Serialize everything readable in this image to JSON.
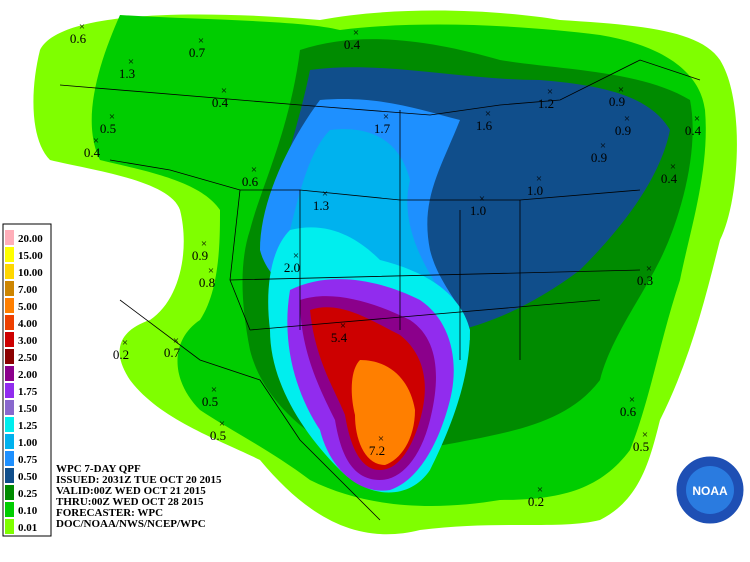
{
  "legend": {
    "items": [
      {
        "label": "20.00",
        "color": "#ffaeb9"
      },
      {
        "label": "15.00",
        "color": "#ffff00"
      },
      {
        "label": "10.00",
        "color": "#ffd700"
      },
      {
        "label": "7.00",
        "color": "#cd8500"
      },
      {
        "label": "5.00",
        "color": "#ff7f00"
      },
      {
        "label": "4.00",
        "color": "#ee4000"
      },
      {
        "label": "3.00",
        "color": "#cd0000"
      },
      {
        "label": "2.50",
        "color": "#8b0000"
      },
      {
        "label": "2.00",
        "color": "#8b008b"
      },
      {
        "label": "1.75",
        "color": "#912cee"
      },
      {
        "label": "1.50",
        "color": "#8968cd"
      },
      {
        "label": "1.25",
        "color": "#00eeee"
      },
      {
        "label": "1.00",
        "color": "#00b2ee"
      },
      {
        "label": "0.75",
        "color": "#1e90ff"
      },
      {
        "label": "0.50",
        "color": "#104e8b"
      },
      {
        "label": "0.25",
        "color": "#008b00"
      },
      {
        "label": "0.10",
        "color": "#00cd00"
      },
      {
        "label": "0.01",
        "color": "#7fff00"
      }
    ]
  },
  "info": [
    "WPC 7-DAY QPF",
    "ISSUED: 2031Z TUE OCT 20 2015",
    "VALID:00Z WED OCT 21 2015",
    "THRU:00Z WED OCT 28 2015",
    "FORECASTER: WPC",
    "DOC/NOAA/NWS/NCEP/WPC"
  ],
  "logo": "NOAA",
  "points": [
    "0.6",
    "1.3",
    "0.7",
    "0.4",
    "0.4",
    "0.5",
    "0.4",
    "1.7",
    "1.6",
    "1.2",
    "0.9",
    "0.9",
    "0.4",
    "0.9",
    "0.4",
    "0.6",
    "1.3",
    "1.0",
    "1.0",
    "0.9",
    "2.0",
    "0.8",
    "0.3",
    "5.4",
    "0.2",
    "0.7",
    "0.5",
    "0.6",
    "0.5",
    "0.5",
    "7.2",
    "0.2"
  ]
}
